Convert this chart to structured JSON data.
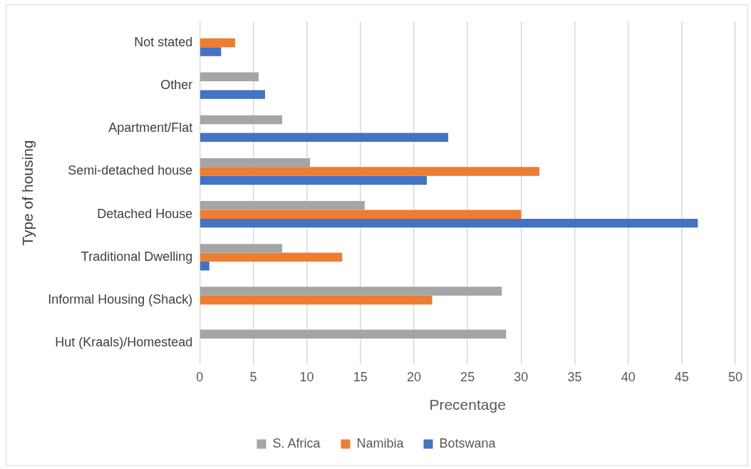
{
  "chart_data": {
    "type": "bar",
    "orientation": "horizontal",
    "xlabel": "Precentage",
    "ylabel": "Type of housing",
    "categories": [
      "Not stated",
      "Other",
      "Apartment/Flat",
      "Semi-detached house",
      "Detached House",
      "Traditional Dwelling",
      "Informal Housing (Shack)",
      "Hut (Kraals)/Homestead"
    ],
    "series": [
      {
        "name": "S. Africa",
        "color": "#a5a5a5",
        "values": [
          null,
          5.5,
          7.7,
          10.3,
          15.4,
          7.7,
          28.2,
          28.6
        ]
      },
      {
        "name": "Namibia",
        "color": "#ed7d31",
        "values": [
          3.3,
          null,
          null,
          31.7,
          30.0,
          13.3,
          21.7,
          null
        ]
      },
      {
        "name": "Botswana",
        "color": "#4472c4",
        "values": [
          2.0,
          6.1,
          23.2,
          21.2,
          46.5,
          0.9,
          null,
          null
        ]
      }
    ],
    "xlim": [
      0,
      50
    ],
    "xticks": [
      0,
      5,
      10,
      15,
      20,
      25,
      30,
      35,
      40,
      45,
      50
    ],
    "grid": "x",
    "legend": "bottom"
  }
}
